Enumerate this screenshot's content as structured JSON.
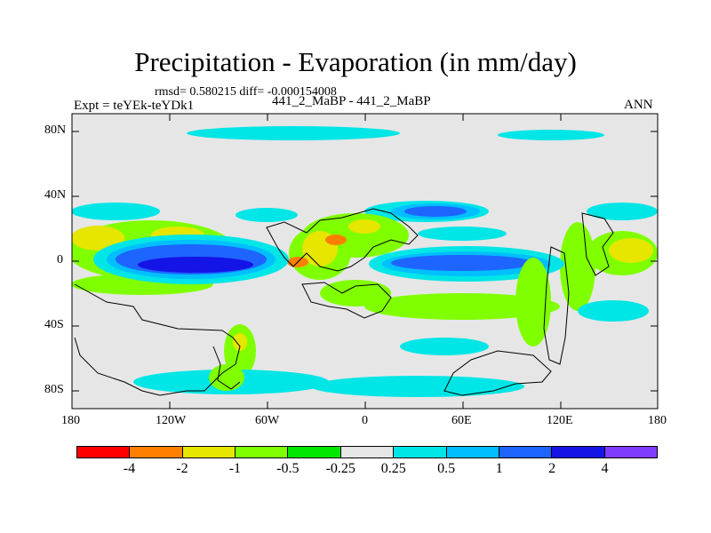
{
  "title": "Precipitation - Evaporation (in mm/day)",
  "stats": "rmsd= 0.580215 diff= -0.000154008",
  "expt_label": "Expt = teYEk-teYDk1",
  "subtitle": "441_2_MaBP - 441_2_MaBP",
  "season": "ANN",
  "map": {
    "lat_ticks": [
      "80N",
      "40N",
      "0",
      "40S",
      "80S"
    ],
    "lon_ticks": [
      "180",
      "120W",
      "60W",
      "0",
      "60E",
      "120E",
      "180"
    ],
    "lat_range": [
      -90,
      90
    ],
    "lon_range": [
      -180,
      180
    ]
  },
  "legend": {
    "colors": [
      "#ff0000",
      "#ff8000",
      "#e6e600",
      "#80ff00",
      "#00e600",
      "#e6e6e6",
      "#00e6e6",
      "#00bfff",
      "#1e64ff",
      "#1414e6",
      "#7f3cff"
    ],
    "labels": [
      "-4",
      "-2",
      "-1",
      "-0.5",
      "-0.25",
      "0.25",
      "0.5",
      "1",
      "2",
      "4"
    ]
  }
}
